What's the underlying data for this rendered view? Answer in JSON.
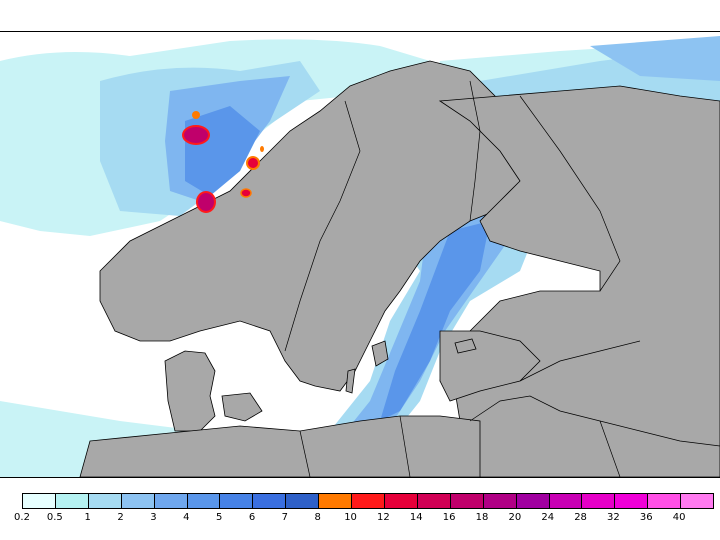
{
  "map": {
    "region": "Scandinavia and Baltic region",
    "land_color": "#a8a8a8",
    "sea_color": "#ffffff",
    "coastline_color": "#000000"
  },
  "legend": {
    "colors": [
      "#e6ffff",
      "#b5f2f2",
      "#a6dbf2",
      "#8dc3f2",
      "#6fa7ee",
      "#5a96ea",
      "#4682e6",
      "#3a6fe0",
      "#2e60c8",
      "#ff7a00",
      "#ff1a1a",
      "#e6003a",
      "#d10055",
      "#c0006b",
      "#b00085",
      "#a000a0",
      "#c800b4",
      "#e600c8",
      "#f000d8",
      "#ff50e6",
      "#ff7af0"
    ],
    "labels": [
      "0.2",
      "0.5",
      "1",
      "2",
      "3",
      "4",
      "5",
      "6",
      "7",
      "8",
      "10",
      "12",
      "14",
      "16",
      "18",
      "20",
      "24",
      "28",
      "32",
      "36",
      "40"
    ]
  }
}
